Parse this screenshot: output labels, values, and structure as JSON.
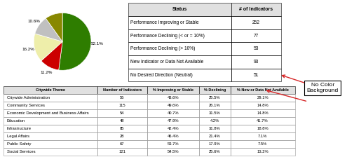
{
  "chart_data": [
    {
      "type": "pie",
      "values": [
        52.1,
        11.2,
        16.2,
        10.6,
        9.9
      ],
      "value_labels": [
        "52.1%",
        "11.2%",
        "16.2%",
        "10.6%",
        null
      ],
      "colors": [
        "#2e7d00",
        "#cc0000",
        "#eeeeaa",
        "#c0c0c0",
        "#888800"
      ],
      "data_labels": true
    },
    {
      "type": "table",
      "columns": [
        "Status",
        "# of Indicators"
      ],
      "rows": [
        [
          "Performance Improving or Stable",
          "252"
        ],
        [
          "Performance Declining (< or = 10%)",
          "77"
        ],
        [
          "Performance Declining (> 10%)",
          "53"
        ],
        [
          "New Indicator or Data Not Available",
          "93"
        ],
        [
          "No Desired Direction (Neutral)",
          "51"
        ]
      ]
    },
    {
      "type": "table",
      "columns": [
        "Citywide Theme",
        "Number of Indicators",
        "% Improving or Stable",
        "% Declining",
        "% New or Data Not Available"
      ],
      "rows": [
        [
          "Citywide Administration",
          "55",
          "43.6%",
          "25.5%",
          "29.1%"
        ],
        [
          "Community Services",
          "115",
          "49.6%",
          "26.1%",
          "14.8%"
        ],
        [
          "Economic Development and Business Affairs",
          "54",
          "40.7%",
          "31.5%",
          "14.8%"
        ],
        [
          "Education",
          "48",
          "47.9%",
          "4.2%",
          "41.7%"
        ],
        [
          "Infrastructure",
          "85",
          "42.4%",
          "31.8%",
          "18.8%"
        ],
        [
          "Legal Affairs",
          "28",
          "46.4%",
          "21.4%",
          "7.1%"
        ],
        [
          "Public Safety",
          "67",
          "53.7%",
          "17.9%",
          "7.5%"
        ],
        [
          "Social Services",
          "121",
          "54.5%",
          "25.6%",
          "13.2%"
        ]
      ],
      "annotations": [
        "No Color\nBackground"
      ]
    }
  ]
}
